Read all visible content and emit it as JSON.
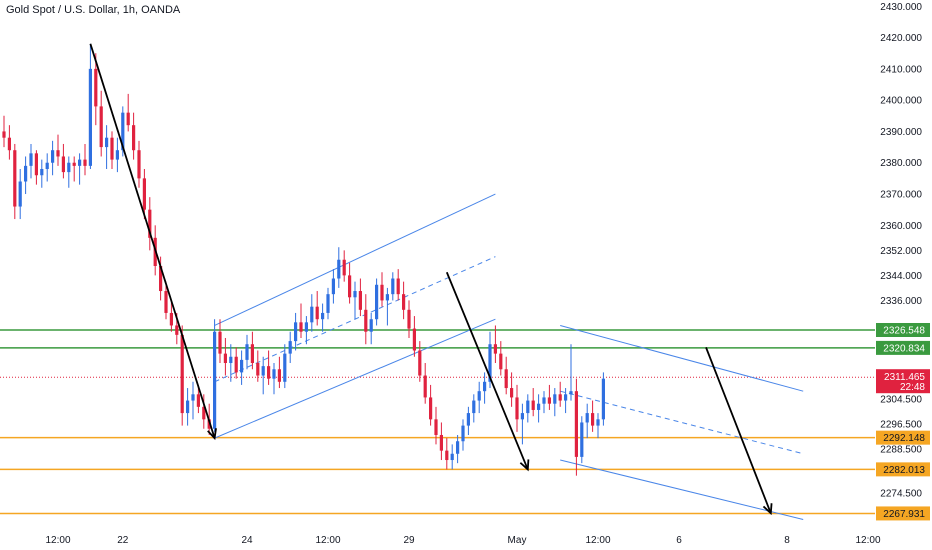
{
  "chart_data": {
    "type": "candlestick",
    "title": "Gold Spot / U.S. Dollar, 1h, OANDA",
    "colors": {
      "up": "#2f6fe0",
      "down": "#e0223f",
      "support_line": "#f5a623",
      "resistance_line": "#3a9a3f",
      "channel": "#4a86e8",
      "trend_arrow": "#000000",
      "current_price": "#e0223f",
      "axis_text": "#131722"
    },
    "ylim": [
      2262,
      2432
    ],
    "y_ticks": [
      2430,
      2420,
      2410,
      2400,
      2390,
      2380,
      2370,
      2360,
      2352,
      2344,
      2336,
      2304.5,
      2296.5,
      2288.5,
      2274.5
    ],
    "y_tick_labels": [
      "2430.000",
      "2420.000",
      "2410.000",
      "2400.000",
      "2390.000",
      "2380.000",
      "2370.000",
      "2360.000",
      "2352.000",
      "2344.000",
      "2336.000",
      "2304.500",
      "2296.500",
      "2288.500",
      "2274.500"
    ],
    "x_ticks": [
      {
        "label": "12:00",
        "bar": 10
      },
      {
        "label": "22",
        "bar": 22
      },
      {
        "label": "24",
        "bar": 45
      },
      {
        "label": "12:00",
        "bar": 60
      },
      {
        "label": "29",
        "bar": 75
      },
      {
        "label": "May",
        "bar": 95
      },
      {
        "label": "12:00",
        "bar": 110
      },
      {
        "label": "6",
        "bar": 125
      },
      {
        "label": "8",
        "bar": 145
      },
      {
        "label": "12:00",
        "bar": 160
      }
    ],
    "levels": [
      {
        "value": 2326.548,
        "label": "2326.548",
        "kind": "resistance"
      },
      {
        "value": 2320.834,
        "label": "2320.834",
        "kind": "resistance"
      },
      {
        "value": 2292.148,
        "label": "2292.148",
        "kind": "support"
      },
      {
        "value": 2282.013,
        "label": "2282.013",
        "kind": "support"
      },
      {
        "value": 2267.931,
        "label": "2267.931",
        "kind": "support"
      }
    ],
    "current_price": {
      "value": 2311.465,
      "label": "2311.465",
      "countdown": "22:48"
    },
    "channels": [
      {
        "from": [
          39,
          2328
        ],
        "to": [
          91,
          2370
        ],
        "dashed": false
      },
      {
        "from": [
          39,
          2292
        ],
        "to": [
          91,
          2330
        ],
        "dashed": false
      },
      {
        "from": [
          39,
          2310
        ],
        "to": [
          91,
          2350
        ],
        "dashed": true
      },
      {
        "from": [
          103,
          2328
        ],
        "to": [
          148,
          2307
        ],
        "dashed": false
      },
      {
        "from": [
          103,
          2285
        ],
        "to": [
          148,
          2266
        ],
        "dashed": false
      },
      {
        "from": [
          103,
          2307
        ],
        "to": [
          148,
          2287
        ],
        "dashed": true
      }
    ],
    "arrows": [
      {
        "from": [
          16,
          2418
        ],
        "to": [
          39,
          2292
        ]
      },
      {
        "from": [
          82,
          2345
        ],
        "to": [
          97,
          2282
        ]
      },
      {
        "from": [
          130,
          2321
        ],
        "to": [
          142,
          2268
        ]
      }
    ],
    "x_range": [
      0,
      160
    ],
    "candles": [
      [
        2390,
        2395,
        2385,
        2388
      ],
      [
        2388,
        2392,
        2381,
        2384
      ],
      [
        2384,
        2386,
        2362,
        2366
      ],
      [
        2366,
        2378,
        2362,
        2374
      ],
      [
        2374,
        2382,
        2370,
        2379
      ],
      [
        2379,
        2386,
        2375,
        2383
      ],
      [
        2383,
        2384,
        2373,
        2376
      ],
      [
        2376,
        2381,
        2372,
        2378
      ],
      [
        2378,
        2383,
        2374,
        2380
      ],
      [
        2380,
        2387,
        2376,
        2384
      ],
      [
        2384,
        2389,
        2379,
        2382
      ],
      [
        2382,
        2386,
        2375,
        2377
      ],
      [
        2377,
        2382,
        2372,
        2380
      ],
      [
        2380,
        2382,
        2374,
        2379
      ],
      [
        2379,
        2383,
        2373,
        2381
      ],
      [
        2381,
        2386,
        2376,
        2379
      ],
      [
        2379,
        2418,
        2378,
        2410
      ],
      [
        2410,
        2415,
        2392,
        2398
      ],
      [
        2398,
        2403,
        2382,
        2385
      ],
      [
        2385,
        2392,
        2378,
        2388
      ],
      [
        2388,
        2390,
        2378,
        2381
      ],
      [
        2381,
        2388,
        2377,
        2384
      ],
      [
        2384,
        2398,
        2382,
        2396
      ],
      [
        2396,
        2402,
        2390,
        2392
      ],
      [
        2392,
        2396,
        2381,
        2384
      ],
      [
        2384,
        2387,
        2372,
        2375
      ],
      [
        2375,
        2378,
        2362,
        2365
      ],
      [
        2365,
        2369,
        2352,
        2356
      ],
      [
        2356,
        2360,
        2344,
        2347
      ],
      [
        2347,
        2350,
        2336,
        2339
      ],
      [
        2339,
        2342,
        2330,
        2332
      ],
      [
        2332,
        2336,
        2326,
        2328
      ],
      [
        2328,
        2332,
        2322,
        2325
      ],
      [
        2325,
        2328,
        2296,
        2300
      ],
      [
        2300,
        2308,
        2296,
        2304
      ],
      [
        2304,
        2310,
        2298,
        2306
      ],
      [
        2306,
        2309,
        2300,
        2302
      ],
      [
        2302,
        2306,
        2295,
        2298
      ],
      [
        2298,
        2303,
        2293,
        2295
      ],
      [
        2295,
        2330,
        2294,
        2326
      ],
      [
        2326,
        2330,
        2316,
        2319
      ],
      [
        2319,
        2324,
        2312,
        2316
      ],
      [
        2316,
        2322,
        2310,
        2318
      ],
      [
        2318,
        2321,
        2311,
        2313
      ],
      [
        2313,
        2320,
        2309,
        2317
      ],
      [
        2317,
        2325,
        2314,
        2322
      ],
      [
        2322,
        2326,
        2314,
        2316
      ],
      [
        2316,
        2320,
        2310,
        2312
      ],
      [
        2312,
        2318,
        2306,
        2315
      ],
      [
        2315,
        2320,
        2309,
        2311
      ],
      [
        2311,
        2316,
        2306,
        2314
      ],
      [
        2314,
        2318,
        2308,
        2310
      ],
      [
        2310,
        2322,
        2308,
        2319
      ],
      [
        2319,
        2326,
        2316,
        2323
      ],
      [
        2323,
        2332,
        2320,
        2329
      ],
      [
        2329,
        2335,
        2324,
        2326
      ],
      [
        2326,
        2331,
        2322,
        2329
      ],
      [
        2329,
        2338,
        2326,
        2334
      ],
      [
        2334,
        2339,
        2328,
        2330
      ],
      [
        2330,
        2335,
        2326,
        2332
      ],
      [
        2332,
        2340,
        2330,
        2338
      ],
      [
        2338,
        2346,
        2335,
        2343
      ],
      [
        2343,
        2353,
        2340,
        2349
      ],
      [
        2349,
        2352,
        2342,
        2344
      ],
      [
        2344,
        2348,
        2335,
        2337
      ],
      [
        2337,
        2342,
        2330,
        2339
      ],
      [
        2339,
        2343,
        2331,
        2333
      ],
      [
        2333,
        2338,
        2322,
        2326
      ],
      [
        2326,
        2332,
        2322,
        2330
      ],
      [
        2330,
        2343,
        2328,
        2341
      ],
      [
        2341,
        2345,
        2334,
        2336
      ],
      [
        2336,
        2340,
        2328,
        2338
      ],
      [
        2338,
        2345,
        2336,
        2343
      ],
      [
        2343,
        2346,
        2336,
        2338
      ],
      [
        2338,
        2342,
        2330,
        2333
      ],
      [
        2333,
        2336,
        2324,
        2327
      ],
      [
        2327,
        2331,
        2318,
        2320
      ],
      [
        2320,
        2323,
        2310,
        2312
      ],
      [
        2312,
        2316,
        2303,
        2305
      ],
      [
        2305,
        2309,
        2296,
        2298
      ],
      [
        2298,
        2302,
        2290,
        2293
      ],
      [
        2293,
        2297,
        2285,
        2288
      ],
      [
        2288,
        2292,
        2282,
        2285
      ],
      [
        2285,
        2290,
        2282,
        2287
      ],
      [
        2287,
        2293,
        2284,
        2291
      ],
      [
        2291,
        2298,
        2288,
        2296
      ],
      [
        2296,
        2302,
        2293,
        2300
      ],
      [
        2300,
        2306,
        2297,
        2304
      ],
      [
        2304,
        2310,
        2300,
        2307
      ],
      [
        2307,
        2313,
        2303,
        2310
      ],
      [
        2310,
        2326,
        2308,
        2322
      ],
      [
        2322,
        2328,
        2316,
        2319
      ],
      [
        2319,
        2323,
        2312,
        2314
      ],
      [
        2314,
        2318,
        2306,
        2308
      ],
      [
        2308,
        2313,
        2302,
        2305
      ],
      [
        2305,
        2309,
        2294,
        2298
      ],
      [
        2298,
        2303,
        2290,
        2300
      ],
      [
        2300,
        2306,
        2297,
        2304
      ],
      [
        2304,
        2308,
        2299,
        2301
      ],
      [
        2301,
        2306,
        2297,
        2303
      ],
      [
        2303,
        2307,
        2300,
        2305
      ],
      [
        2305,
        2309,
        2301,
        2303
      ],
      [
        2303,
        2308,
        2299,
        2306
      ],
      [
        2306,
        2310,
        2302,
        2304
      ],
      [
        2304,
        2308,
        2300,
        2306
      ],
      [
        2306,
        2322,
        2304,
        2307
      ],
      [
        2307,
        2311,
        2280,
        2286
      ],
      [
        2286,
        2299,
        2284,
        2297
      ],
      [
        2297,
        2303,
        2292,
        2300
      ],
      [
        2300,
        2304,
        2294,
        2296
      ],
      [
        2296,
        2300,
        2292,
        2298
      ],
      [
        2298,
        2313,
        2296,
        2311
      ]
    ]
  }
}
